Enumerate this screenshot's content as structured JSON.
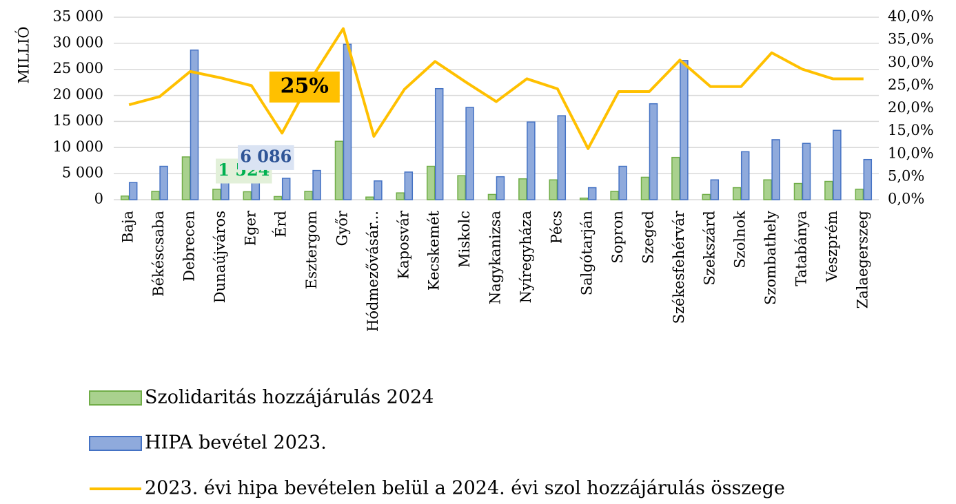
{
  "chart_data": {
    "type": "bar",
    "y_axis_label": "MILLIÓ",
    "categories": [
      "Baja",
      "Békéscsaba",
      "Debrecen",
      "Dunaújváros",
      "Eger",
      "Érd",
      "Esztergom",
      "Győr",
      "Hódmezővásár...",
      "Kaposvár",
      "Kecskemét",
      "Miskolc",
      "Nagykanizsa",
      "Nyíregyháza",
      "Pécs",
      "Salgótarján",
      "Sopron",
      "Szeged",
      "Székesfehérvár",
      "Szekszárd",
      "Szolnok",
      "Szombathely",
      "Tatabánya",
      "Veszprém",
      "Zalaegerszeg"
    ],
    "series": [
      {
        "name": "Szolidaritás hozzájárulás 2024",
        "type": "bar",
        "color": "#a9d18e",
        "border": "#70ad47",
        "values": [
          700,
          1600,
          8200,
          2000,
          1524,
          600,
          1600,
          11200,
          500,
          1300,
          6400,
          4600,
          1000,
          4000,
          3800,
          300,
          1600,
          4300,
          8100,
          1000,
          2300,
          3800,
          3100,
          3500,
          2000
        ],
        "value_labels": [
          null,
          null,
          null,
          null,
          "1 524",
          null,
          null,
          null,
          null,
          null,
          null,
          null,
          null,
          null,
          null,
          null,
          null,
          null,
          null,
          null,
          null,
          null,
          null,
          null,
          null
        ]
      },
      {
        "name": "HIPA bevétel 2023.",
        "type": "bar",
        "color": "#8faadc",
        "border": "#4472c4",
        "values": [
          3300,
          6400,
          28700,
          4500,
          6086,
          4100,
          5600,
          29800,
          3600,
          5300,
          21300,
          17700,
          4400,
          14900,
          16100,
          2300,
          6400,
          18400,
          26700,
          3800,
          9200,
          11500,
          10800,
          13300,
          7700
        ],
        "value_labels": [
          null,
          null,
          null,
          null,
          "6 086",
          null,
          null,
          null,
          null,
          null,
          null,
          null,
          null,
          null,
          null,
          null,
          null,
          null,
          null,
          null,
          null,
          null,
          null,
          null,
          null
        ]
      },
      {
        "name": "2023. évi hipa bevételen belül a 2024. évi szol hozzájárulás összege",
        "type": "line",
        "axis": "y2",
        "color": "#ffc000",
        "values": [
          20.8,
          22.6,
          28.1,
          26.7,
          25.0,
          14.6,
          27.0,
          37.5,
          13.9,
          24.2,
          30.3,
          25.8,
          21.5,
          26.5,
          24.3,
          11.2,
          23.7,
          23.7,
          30.6,
          24.8,
          24.8,
          32.2,
          28.6,
          26.5,
          26.5
        ],
        "value_labels": [
          null,
          null,
          null,
          null,
          "25%",
          null,
          null,
          null,
          null,
          null,
          null,
          null,
          null,
          null,
          null,
          null,
          null,
          null,
          null,
          null,
          null,
          null,
          null,
          null,
          null
        ]
      }
    ],
    "ylim": [
      0,
      35000
    ],
    "yticks": [
      0,
      {
        "value": 5000,
        "label": "5 000"
      },
      {
        "value": 10000,
        "label": "10 000"
      },
      {
        "value": 15000,
        "label": "15 000"
      },
      {
        "value": 20000,
        "label": "20 000"
      },
      {
        "value": 25000,
        "label": "25 000"
      },
      {
        "value": 30000,
        "label": "30 000"
      },
      {
        "value": 35000,
        "label": "35 000"
      }
    ],
    "y2lim": [
      0,
      40
    ],
    "y2ticks": [
      {
        "value": 0,
        "label": "0,0%"
      },
      {
        "value": 5,
        "label": "5,0%"
      },
      {
        "value": 10,
        "label": "10,0%"
      },
      {
        "value": 15,
        "label": "15,0%"
      },
      {
        "value": 20,
        "label": "20,0%"
      },
      {
        "value": 25,
        "label": "25,0%"
      },
      {
        "value": 30,
        "label": "30,0%"
      },
      {
        "value": 35,
        "label": "35,0%"
      },
      {
        "value": 40,
        "label": "40,0%"
      }
    ],
    "grid": true,
    "legend": "bottom"
  }
}
